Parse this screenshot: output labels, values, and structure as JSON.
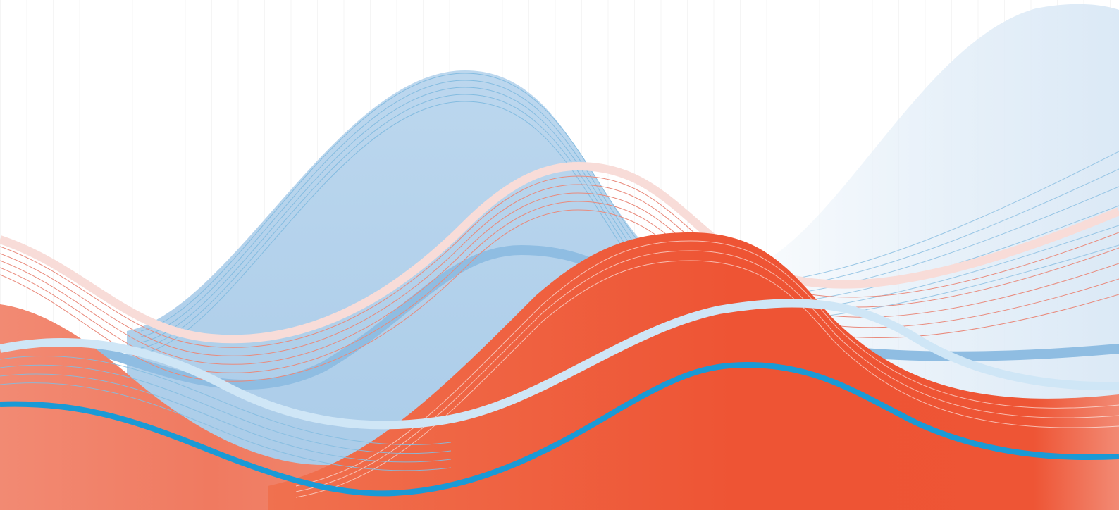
{
  "artwork": {
    "palette": {
      "background": "#ffffff",
      "pale_blue": "#e3eef8",
      "light_blue": "#b4d2ea",
      "mid_blue": "#8fbde2",
      "strong_blue": "#1a9ad6",
      "pale_pink": "#f8dcd8",
      "salmon": "#f1826b",
      "red_orange": "#ee5434",
      "thin_red_line": "#e98a7c",
      "thin_blue_line": "#84bce0"
    }
  }
}
